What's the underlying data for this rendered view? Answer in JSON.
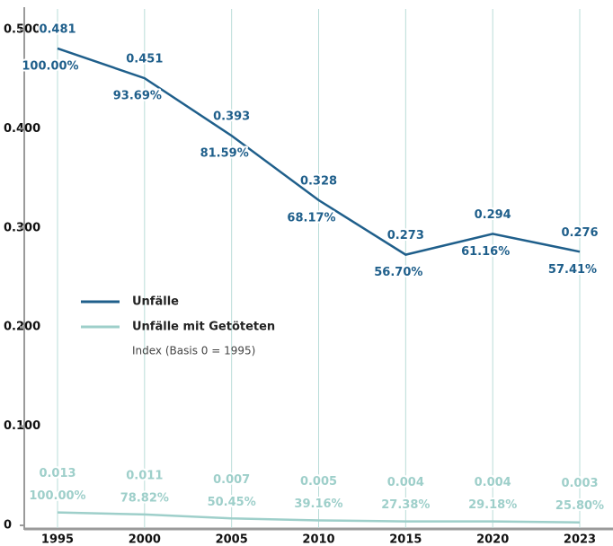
{
  "chart_data": {
    "type": "line",
    "categories": [
      "1995",
      "2000",
      "2005",
      "2010",
      "2015",
      "2020",
      "2023"
    ],
    "series": [
      {
        "name": "Unfälle",
        "color": "#1f5f8b",
        "values": [
          0.481,
          0.451,
          0.393,
          0.328,
          0.273,
          0.294,
          0.276
        ],
        "index_labels": [
          "100.00%",
          "93.69%",
          "81.59%",
          "68.17%",
          "56.70%",
          "61.16%",
          "57.41%"
        ]
      },
      {
        "name": "Unfälle mit Getöteten",
        "color": "#9ecfca",
        "values": [
          0.013,
          0.011,
          0.007,
          0.005,
          0.004,
          0.004,
          0.003
        ],
        "index_labels": [
          "100.00%",
          "78.82%",
          "50.45%",
          "39.16%",
          "27.38%",
          "29.18%",
          "25.80%"
        ]
      }
    ],
    "legend_note": "Index (Basis 0 = 1995)",
    "ylim": [
      0,
      0.5
    ],
    "yticks": [
      0,
      {
        "value": 0.1,
        "label": "0.100"
      },
      {
        "value": 0.2,
        "label": "0.200"
      },
      {
        "value": 0.3,
        "label": "0.300"
      },
      {
        "value": 0.4,
        "label": "0.400"
      },
      {
        "value": 0.5,
        "label": "0.500"
      }
    ],
    "grid": true
  }
}
